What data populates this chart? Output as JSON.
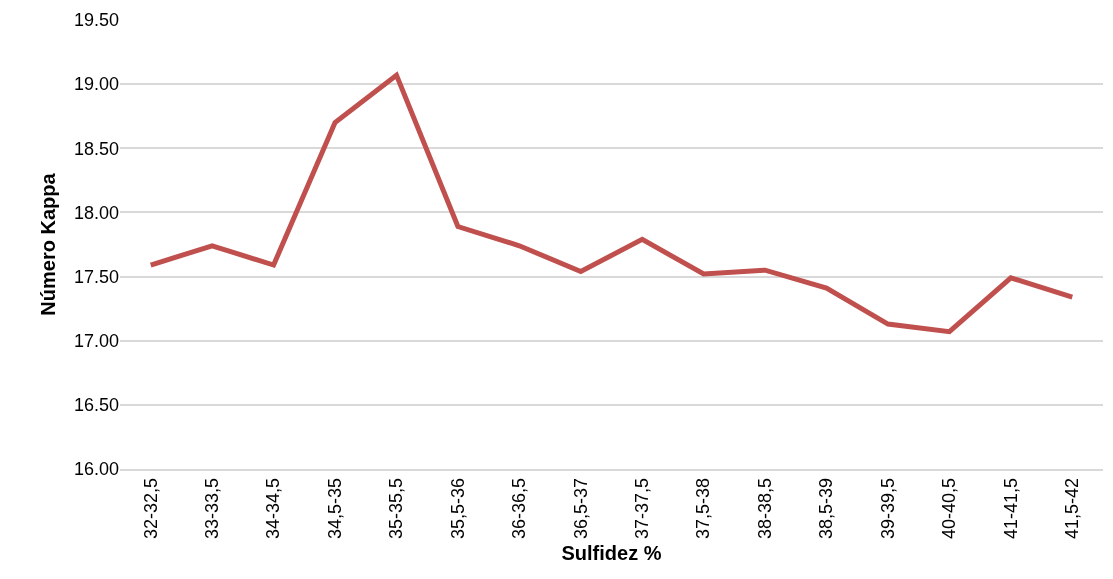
{
  "chart_data": {
    "type": "line",
    "xlabel": "Sulfidez %",
    "ylabel": "Número Kappa",
    "categories": [
      "32-32,5",
      "33-33,5",
      "34-34,5",
      "34,5-35",
      "35-35,5",
      "35,5-36",
      "36-36,5",
      "36,5-37",
      "37-37,5",
      "37,5-38",
      "38-38,5",
      "38,5-39",
      "39-39,5",
      "40-40,5",
      "41-41,5",
      "41,5-42"
    ],
    "series": [
      {
        "color": "#c0504d",
        "values": [
          17.59,
          17.74,
          17.59,
          18.7,
          19.07,
          17.89,
          17.74,
          17.54,
          17.79,
          17.52,
          17.55,
          17.41,
          17.13,
          17.07,
          17.49,
          17.34
        ]
      }
    ],
    "ylim": [
      16,
      19.5
    ],
    "yticks": [
      {
        "value": 16,
        "label": "16.00"
      },
      {
        "value": 16.5,
        "label": "16.50"
      },
      {
        "value": 17,
        "label": "17.00"
      },
      {
        "value": 17.5,
        "label": "17.50"
      },
      {
        "value": 18,
        "label": "18.00"
      },
      {
        "value": 18.5,
        "label": "18.50"
      },
      {
        "value": 19,
        "label": "19.00"
      },
      {
        "value": 19.5,
        "label": "19.50"
      }
    ],
    "grid": "y",
    "legend": false,
    "marker": "none",
    "line_style": "solid"
  }
}
